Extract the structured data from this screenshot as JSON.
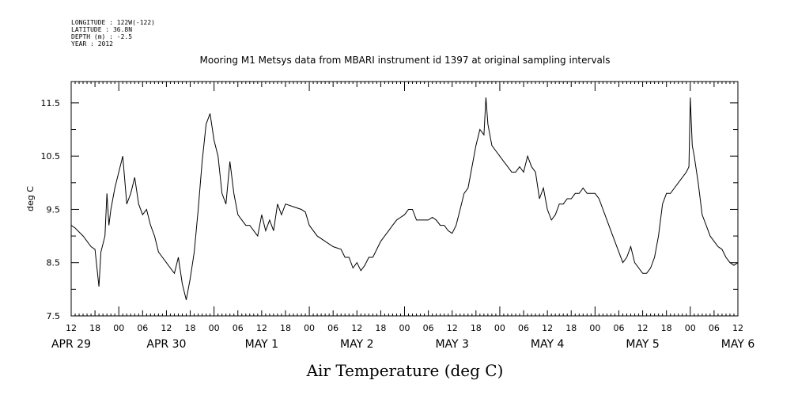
{
  "header": {
    "meta_lines": [
      "LONGITUDE : 122W(-122)",
      "LATITUDE : 36.8N",
      "DEPTH (m) : -2.5",
      "YEAR : 2012"
    ]
  },
  "chart_data": {
    "type": "line",
    "title": "Mooring M1 Metsys data from MBARI instrument id 1397 at original sampling intervals",
    "xlabel": "Air Temperature (deg C)",
    "ylabel": "deg C",
    "xlim": [
      "2012-04-29 12:00",
      "2012-05-06 12:00"
    ],
    "ylim": [
      7.5,
      11.9
    ],
    "yticks": [
      7.5,
      8.5,
      9.5,
      10.5,
      11.5
    ],
    "hour_tick_labels": [
      "12",
      "18",
      "00",
      "06",
      "12",
      "18",
      "00",
      "06",
      "12",
      "18",
      "00",
      "06",
      "12",
      "18",
      "00",
      "06",
      "12",
      "18",
      "00",
      "06",
      "12",
      "18",
      "00",
      "06",
      "12",
      "18",
      "00",
      "06",
      "12"
    ],
    "date_labels": [
      "APR 29",
      "APR 30",
      "MAY 1",
      "MAY 2",
      "MAY 3",
      "MAY 4",
      "MAY 5",
      "MAY 6"
    ],
    "grid": false,
    "legend": "none",
    "series": [
      {
        "color": "#000000",
        "x": [
          "04-29 12:00",
          "04-29 13:00",
          "04-29 15:00",
          "04-29 17:00",
          "04-29 18:00",
          "04-29 19:00",
          "04-29 19:30",
          "04-29 20:30",
          "04-29 21:00",
          "04-29 21:30",
          "04-29 22:00",
          "04-29 23:00",
          "04-30 00:00",
          "04-30 01:00",
          "04-30 02:00",
          "04-30 03:00",
          "04-30 04:00",
          "04-30 05:00",
          "04-30 06:00",
          "04-30 07:00",
          "04-30 08:00",
          "04-30 09:00",
          "04-30 10:00",
          "04-30 11:00",
          "04-30 12:00",
          "04-30 13:00",
          "04-30 14:00",
          "04-30 15:00",
          "04-30 16:00",
          "04-30 17:00",
          "04-30 18:00",
          "04-30 19:00",
          "04-30 20:00",
          "04-30 21:00",
          "04-30 22:00",
          "04-30 23:00",
          "05-01 00:00",
          "05-01 01:00",
          "05-01 02:00",
          "05-01 03:00",
          "05-01 04:00",
          "05-01 05:00",
          "05-01 06:00",
          "05-01 07:00",
          "05-01 08:00",
          "05-01 09:00",
          "05-01 10:00",
          "05-01 11:00",
          "05-01 12:00",
          "05-01 13:00",
          "05-01 14:00",
          "05-01 15:00",
          "05-01 16:00",
          "05-01 17:00",
          "05-01 18:00",
          "05-01 20:00",
          "05-01 22:00",
          "05-01 23:00",
          "05-02 00:00",
          "05-02 02:00",
          "05-02 04:00",
          "05-02 06:00",
          "05-02 08:00",
          "05-02 09:00",
          "05-02 10:00",
          "05-02 11:00",
          "05-02 12:00",
          "05-02 13:00",
          "05-02 14:00",
          "05-02 15:00",
          "05-02 16:00",
          "05-02 17:00",
          "05-02 18:00",
          "05-02 19:00",
          "05-02 20:00",
          "05-02 21:00",
          "05-02 22:00",
          "05-02 23:00",
          "05-03 00:00",
          "05-03 01:00",
          "05-03 02:00",
          "05-03 03:00",
          "05-03 04:00",
          "05-03 05:00",
          "05-03 06:00",
          "05-03 07:00",
          "05-03 08:00",
          "05-03 09:00",
          "05-03 10:00",
          "05-03 11:00",
          "05-03 12:00",
          "05-03 13:00",
          "05-03 14:00",
          "05-03 15:00",
          "05-03 16:00",
          "05-03 17:00",
          "05-03 18:00",
          "05-03 19:00",
          "05-03 20:00",
          "05-03 20:30",
          "05-03 21:00",
          "05-03 21:30",
          "05-03 22:00",
          "05-03 23:00",
          "05-04 00:00",
          "05-04 01:00",
          "05-04 02:00",
          "05-04 03:00",
          "05-04 04:00",
          "05-04 05:00",
          "05-04 06:00",
          "05-04 07:00",
          "05-04 08:00",
          "05-04 09:00",
          "05-04 10:00",
          "05-04 11:00",
          "05-04 12:00",
          "05-04 13:00",
          "05-04 14:00",
          "05-04 15:00",
          "05-04 16:00",
          "05-04 17:00",
          "05-04 18:00",
          "05-04 19:00",
          "05-04 20:00",
          "05-04 21:00",
          "05-04 22:00",
          "05-04 23:00",
          "05-05 00:00",
          "05-05 01:00",
          "05-05 02:00",
          "05-05 03:00",
          "05-05 04:00",
          "05-05 05:00",
          "05-05 06:00",
          "05-05 07:00",
          "05-05 08:00",
          "05-05 09:00",
          "05-05 10:00",
          "05-05 11:00",
          "05-05 12:00",
          "05-05 13:00",
          "05-05 14:00",
          "05-05 15:00",
          "05-05 16:00",
          "05-05 17:00",
          "05-05 18:00",
          "05-05 19:00",
          "05-05 20:00",
          "05-05 21:00",
          "05-05 22:00",
          "05-05 23:00",
          "05-05 23:40",
          "05-06 00:00",
          "05-06 00:30",
          "05-06 01:00",
          "05-06 02:00",
          "05-06 03:00",
          "05-06 04:00",
          "05-06 05:00",
          "05-06 06:00",
          "05-06 07:00",
          "05-06 08:00",
          "05-06 09:00",
          "05-06 10:00",
          "05-06 11:00",
          "05-06 12:00"
        ],
        "y": [
          9.2,
          9.15,
          9.0,
          8.8,
          8.75,
          8.05,
          8.7,
          9.0,
          9.8,
          9.2,
          9.5,
          9.9,
          10.2,
          10.5,
          9.6,
          9.8,
          10.1,
          9.6,
          9.4,
          9.5,
          9.2,
          9.0,
          8.7,
          8.6,
          8.5,
          8.4,
          8.3,
          8.6,
          8.1,
          7.8,
          8.2,
          8.7,
          9.5,
          10.4,
          11.1,
          11.3,
          10.8,
          10.5,
          9.8,
          9.6,
          10.4,
          9.8,
          9.4,
          9.3,
          9.2,
          9.2,
          9.1,
          9.0,
          9.4,
          9.1,
          9.3,
          9.1,
          9.6,
          9.4,
          9.6,
          9.55,
          9.5,
          9.45,
          9.2,
          9.0,
          8.9,
          8.8,
          8.75,
          8.6,
          8.6,
          8.4,
          8.5,
          8.35,
          8.45,
          8.6,
          8.6,
          8.75,
          8.9,
          9.0,
          9.1,
          9.2,
          9.3,
          9.35,
          9.4,
          9.5,
          9.5,
          9.3,
          9.3,
          9.3,
          9.3,
          9.35,
          9.3,
          9.2,
          9.2,
          9.1,
          9.05,
          9.2,
          9.5,
          9.8,
          9.9,
          10.3,
          10.7,
          11.0,
          10.9,
          11.6,
          11.1,
          10.9,
          10.7,
          10.6,
          10.5,
          10.4,
          10.3,
          10.2,
          10.2,
          10.3,
          10.2,
          10.5,
          10.3,
          10.2,
          9.7,
          9.9,
          9.5,
          9.3,
          9.4,
          9.6,
          9.6,
          9.7,
          9.7,
          9.8,
          9.8,
          9.9,
          9.8,
          9.8,
          9.8,
          9.7,
          9.5,
          9.3,
          9.1,
          8.9,
          8.7,
          8.5,
          8.6,
          8.8,
          8.5,
          8.4,
          8.3,
          8.3,
          8.4,
          8.6,
          9.0,
          9.6,
          9.8,
          9.8,
          9.9,
          10.0,
          10.1,
          10.2,
          10.3,
          11.6,
          10.7,
          10.5,
          10.0,
          9.4,
          9.2,
          9.0,
          8.9,
          8.8,
          8.75,
          8.6,
          8.5,
          8.45,
          8.5
        ]
      }
    ]
  }
}
